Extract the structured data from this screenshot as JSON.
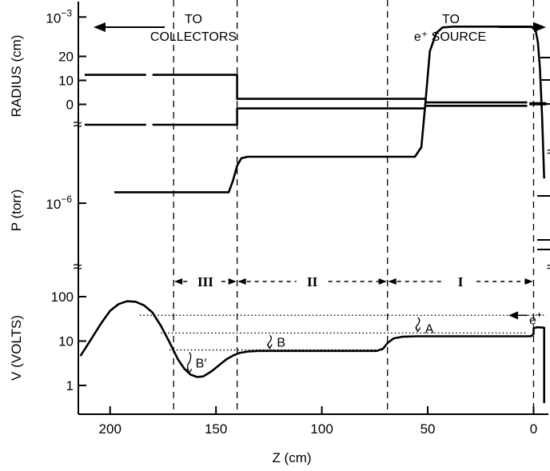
{
  "header": {
    "left_line1": "TO",
    "left_line2": "COLLECTORS",
    "right_line1": "TO",
    "right_line2": "e⁺ SOURCE"
  },
  "x_axis": {
    "label": "Z (cm)",
    "ticks": [
      200,
      150,
      100,
      50,
      0
    ],
    "tick_labels": [
      "200",
      "150",
      "100",
      "50",
      "0"
    ],
    "range": [
      215,
      -7
    ],
    "direction": "decreasing to the right"
  },
  "section_markers_z": [
    170,
    140,
    69,
    0
  ],
  "regions": [
    {
      "label": "III",
      "from": 170,
      "to": 140
    },
    {
      "label": "II",
      "from": 140,
      "to": 69
    },
    {
      "label": "I",
      "from": 69,
      "to": 0
    }
  ],
  "break_symbol": "≈",
  "chart_data": [
    {
      "type": "line",
      "panel": "radius",
      "ylabel": "RADIUS (cm)",
      "yticks": [
        20,
        10,
        0
      ],
      "ytick_labels": [
        "20",
        "10",
        "0"
      ],
      "series": [
        {
          "points": [
            [
              212,
              12.3
            ],
            [
              183,
              12.3
            ]
          ]
        },
        {
          "points": [
            [
              180,
              12.3
            ],
            [
              141,
              12.3
            ],
            [
              140,
              12.3
            ],
            [
              140,
              2.3
            ],
            [
              51,
              2.3
            ]
          ]
        },
        {
          "points": [
            [
              51,
              0.8
            ],
            [
              3,
              0.8
            ]
          ]
        },
        {
          "points": [
            [
              2,
              0.5
            ],
            [
              -6,
              0.5
            ]
          ]
        },
        {
          "points": [
            [
              212,
              -8.5
            ],
            [
              183,
              -8.5
            ]
          ]
        },
        {
          "points": [
            [
              180,
              -8.5
            ],
            [
              141,
              -8.5
            ],
            [
              140,
              -8.5
            ],
            [
              140,
              -1.7
            ],
            [
              51,
              -1.7
            ]
          ]
        },
        {
          "points": [
            [
              51,
              -0.6
            ],
            [
              3,
              -0.6
            ]
          ]
        },
        {
          "points": [
            [
              2,
              0.0
            ],
            [
              -6,
              0.0
            ]
          ]
        }
      ]
    },
    {
      "type": "line",
      "panel": "pressure",
      "ylabel": "P (torr)",
      "yscale": "log",
      "yticks": [
        0.001,
        1e-06
      ],
      "ytick_labels": [
        {
          "base": "10",
          "exp": "−3"
        },
        {
          "base": "10",
          "exp": "−6"
        }
      ],
      "series": [
        {
          "points": [
            [
              198,
              1.5e-06
            ],
            [
              144,
              1.5e-06
            ],
            [
              142,
              2.3e-06
            ],
            [
              140,
              4e-06
            ],
            [
              138,
              5.3e-06
            ],
            [
              135,
              5.6e-06
            ],
            [
              56,
              5.6e-06
            ],
            [
              53,
              8e-06
            ],
            [
              51,
              4.5e-05
            ],
            [
              49,
              0.00028
            ],
            [
              46,
              0.00055
            ],
            [
              43,
              0.00068
            ],
            [
              38,
              0.0007
            ],
            [
              1,
              0.0007
            ],
            [
              -1,
              0.0006
            ],
            [
              -2,
              0.0004
            ],
            [
              -3,
              0.00015
            ],
            [
              -4,
              2.5e-05
            ],
            [
              -5,
              2.5e-06
            ]
          ]
        }
      ]
    },
    {
      "type": "line",
      "panel": "potential",
      "ylabel": "V (VOLTS)",
      "yscale": "log",
      "yticks": [
        100,
        10,
        1
      ],
      "ytick_labels": [
        "100",
        "10",
        "1"
      ],
      "series": [
        {
          "points": [
            [
              214,
              4.6
            ],
            [
              212,
              6.5
            ],
            [
              208,
              13
            ],
            [
              204,
              26
            ],
            [
              200,
              48
            ],
            [
              196,
              68
            ],
            [
              192,
              79
            ],
            [
              188,
              77
            ],
            [
              184,
              64
            ],
            [
              180,
              44
            ],
            [
              176,
              22
            ],
            [
              172,
              9.5
            ],
            [
              168,
              3.9
            ],
            [
              165,
              2.4
            ],
            [
              162,
              1.75
            ],
            [
              159,
              1.55
            ],
            [
              156,
              1.6
            ],
            [
              152,
              2.1
            ],
            [
              148,
              3.0
            ],
            [
              145,
              3.9
            ],
            [
              142,
              4.7
            ],
            [
              139,
              5.4
            ],
            [
              135,
              5.8
            ],
            [
              130,
              6.0
            ],
            [
              74,
              6.0
            ],
            [
              71,
              6.8
            ],
            [
              69,
              9.0
            ],
            [
              66,
              11.5
            ],
            [
              62,
              12.5
            ],
            [
              55,
              12.8
            ],
            [
              2,
              12.8
            ],
            [
              1,
              13
            ],
            [
              0,
              14.5
            ],
            [
              0,
              19.5
            ],
            [
              -2,
              20.5
            ],
            [
              -5,
              20
            ],
            [
              -5,
              0.4
            ]
          ]
        }
      ],
      "reference_levels": [
        {
          "y": 38,
          "from": 186,
          "to": -6
        },
        {
          "y": 15.2,
          "from": 176,
          "to": 3
        },
        {
          "y": 6.3,
          "from": 172,
          "to": 70
        }
      ],
      "annotations": [
        {
          "label": "A",
          "z": 52
        },
        {
          "label": "B",
          "z": 122
        },
        {
          "label": "B′",
          "z": 160
        },
        {
          "label": "e⁺",
          "z": -7
        }
      ]
    }
  ]
}
